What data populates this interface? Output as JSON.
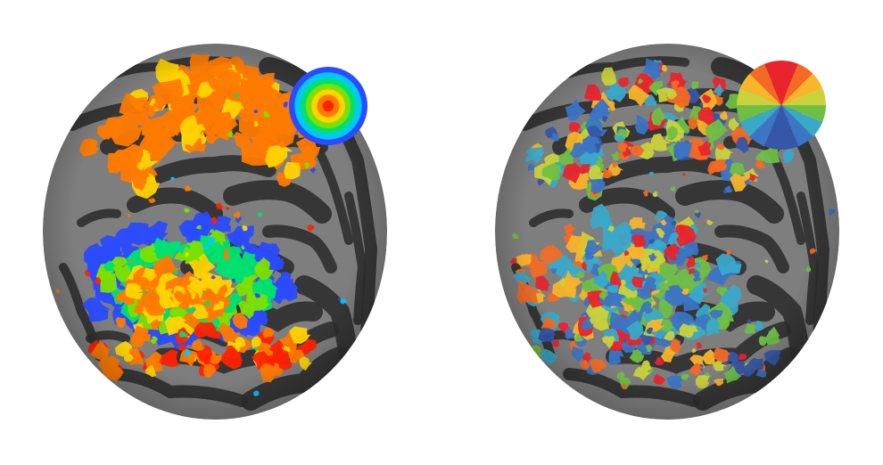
{
  "figure": {
    "panels": [
      {
        "id": "eccentricity",
        "map_type": "eccentricity",
        "legend_type": "concentric-rings",
        "palette": [
          "#ff2200",
          "#ff7a00",
          "#ffd400",
          "#7de000",
          "#00e070",
          "#00c8ff",
          "#2a4bff"
        ]
      },
      {
        "id": "polar-angle",
        "map_type": "polar-angle",
        "legend_type": "color-wheel",
        "palette": [
          "#e8242c",
          "#f46a24",
          "#f7b52a",
          "#c9d23a",
          "#6fbf44",
          "#3aa9c9",
          "#3b75c4",
          "#3656a8"
        ]
      }
    ],
    "background_color": "#ffffff",
    "surface_colors": {
      "gyri": "#7e7e7e",
      "sulci": "#2f2f2f"
    }
  }
}
